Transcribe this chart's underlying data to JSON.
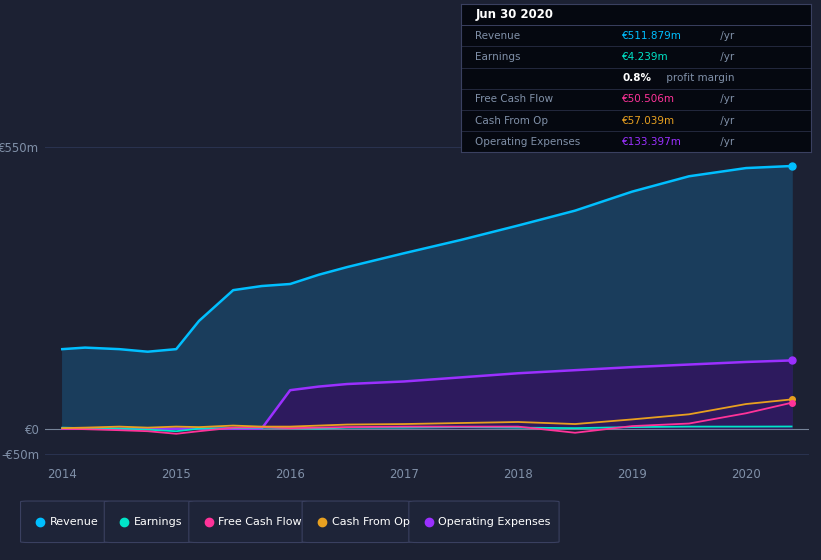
{
  "background_color": "#1c2133",
  "plot_bg_color": "#1c2133",
  "grid_color": "#2a3350",
  "text_color": "#8090a8",
  "title_color": "#ffffff",
  "years": [
    2014.0,
    2014.2,
    2014.5,
    2014.75,
    2015.0,
    2015.2,
    2015.5,
    2015.75,
    2016.0,
    2016.25,
    2016.5,
    2017.0,
    2017.5,
    2018.0,
    2018.5,
    2019.0,
    2019.5,
    2020.0,
    2020.4
  ],
  "revenue": [
    155,
    158,
    155,
    150,
    155,
    210,
    270,
    278,
    282,
    300,
    315,
    342,
    368,
    396,
    425,
    462,
    492,
    508,
    512
  ],
  "earnings": [
    2,
    1,
    0,
    -2,
    -5,
    0,
    1,
    2,
    1,
    0,
    2,
    2,
    3,
    2,
    1,
    3,
    4,
    4,
    4.2
  ],
  "free_cash_flow": [
    0,
    -1,
    -3,
    -5,
    -10,
    -5,
    2,
    3,
    1,
    2,
    3,
    4,
    4,
    4,
    -8,
    5,
    10,
    30,
    50.5
  ],
  "cash_from_op": [
    1,
    2,
    4,
    2,
    4,
    3,
    6,
    4,
    4,
    6,
    8,
    9,
    11,
    13,
    9,
    18,
    28,
    48,
    57
  ],
  "operating_expenses": [
    0,
    0,
    0,
    0,
    0,
    0,
    0,
    0,
    75,
    82,
    87,
    92,
    100,
    108,
    114,
    120,
    125,
    130,
    133
  ],
  "ylim_min": -65,
  "ylim_max": 590,
  "revenue_color": "#00bfff",
  "revenue_fill": "#1a3d5c",
  "earnings_color": "#00e5c8",
  "free_cash_flow_color": "#ff3399",
  "cash_from_op_color": "#e8a020",
  "operating_expenses_color": "#9b30ff",
  "operating_expenses_fill": "#2d1a5e",
  "legend_bg": "#1e2438",
  "legend_border": "#3a4060",
  "info_box_bg": "#050810",
  "info_box_border": "#3a4060",
  "info_date": "Jun 30 2020",
  "info_revenue_label": "Revenue",
  "info_revenue_value": "€511.879m",
  "info_earnings_label": "Earnings",
  "info_earnings_value": "€4.239m",
  "info_margin": "0.8%",
  "info_margin_rest": " profit margin",
  "info_fcf_label": "Free Cash Flow",
  "info_fcf_value": "€50.506m",
  "info_cfop_label": "Cash From Op",
  "info_cfop_value": "€57.039m",
  "info_opex_label": "Operating Expenses",
  "info_opex_value": "€133.397m",
  "per_yr": " /yr"
}
